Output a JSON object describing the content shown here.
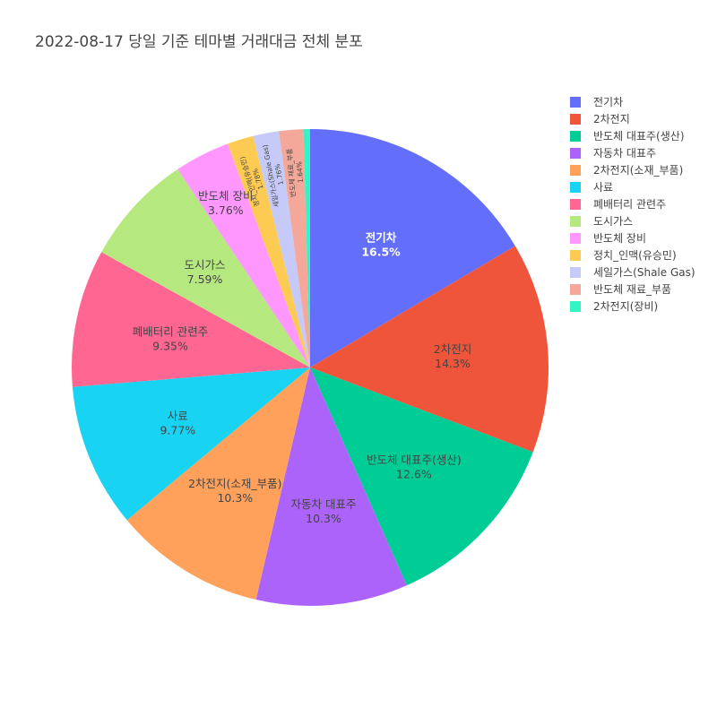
{
  "title": "2022-08-17 당일 기준 테마별 거래대금 전체 분포",
  "chart_data": {
    "type": "pie",
    "title": "2022-08-17 당일 기준 테마별 거래대금 전체 분포",
    "sort": "descending",
    "direction": "clockwise",
    "legend_position": "right",
    "slices": [
      {
        "label": "전기차",
        "percent_text": "16.5%",
        "value": 16.5,
        "color": "#636efa",
        "text_color": "#ffffff",
        "label_position": "inside"
      },
      {
        "label": "2차전지",
        "percent_text": "14.3%",
        "value": 14.3,
        "color": "#ef553b",
        "text_color": "#444444",
        "label_position": "inside"
      },
      {
        "label": "반도체 대표주(생산)",
        "percent_text": "12.6%",
        "value": 12.6,
        "color": "#00cc96",
        "text_color": "#444444",
        "label_position": "inside"
      },
      {
        "label": "자동차 대표주",
        "percent_text": "10.3%",
        "value": 10.3,
        "color": "#ab63fa",
        "text_color": "#444444",
        "label_position": "inside"
      },
      {
        "label": "2차전지(소재_부품)",
        "percent_text": "10.3%",
        "value": 10.3,
        "color": "#ffa15a",
        "text_color": "#444444",
        "label_position": "inside"
      },
      {
        "label": "사료",
        "percent_text": "9.77%",
        "value": 9.77,
        "color": "#19d3f3",
        "text_color": "#444444",
        "label_position": "inside"
      },
      {
        "label": "폐배터리 관련주",
        "percent_text": "9.35%",
        "value": 9.35,
        "color": "#ff6692",
        "text_color": "#444444",
        "label_position": "inside"
      },
      {
        "label": "도시가스",
        "percent_text": "7.59%",
        "value": 7.59,
        "color": "#b6e880",
        "text_color": "#444444",
        "label_position": "inside"
      },
      {
        "label": "반도체 장비",
        "percent_text": "3.76%",
        "value": 3.76,
        "color": "#ff97ff",
        "text_color": "#444444",
        "label_position": "inside"
      },
      {
        "label": "정치_인맥(유승민)",
        "percent_text": "1.78%",
        "value": 1.78,
        "color": "#fecb52",
        "text_color": "#444444",
        "label_position": "inside"
      },
      {
        "label": "세일가스(Shale Gas)",
        "percent_text": "1.76%",
        "value": 1.76,
        "color": "#c6caf8",
        "text_color": "#444444",
        "label_position": "inside"
      },
      {
        "label": "반도체 재료_부품",
        "percent_text": "1.64%",
        "value": 1.64,
        "color": "#f4a89a",
        "text_color": "#444444",
        "label_position": "inside"
      },
      {
        "label": "2차전지(장비)",
        "percent_text": "",
        "value": 0.45,
        "color": "#33f5c4",
        "text_color": "#444444",
        "label_position": "none"
      }
    ]
  }
}
